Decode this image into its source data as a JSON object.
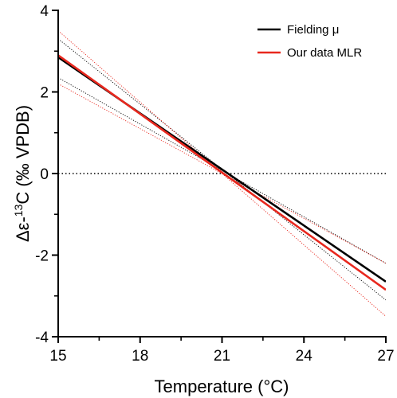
{
  "chart_data": {
    "type": "line",
    "title": "",
    "xlabel": "Temperature (°C)",
    "ylabel_parts": {
      "pre": "Δε-",
      "sup": "13",
      "post": "C (‰ VPDB)"
    },
    "xlim": [
      15,
      27
    ],
    "ylim": [
      -4,
      4
    ],
    "xticks": [
      15,
      18,
      21,
      24,
      27
    ],
    "yticks": [
      -4,
      -2,
      0,
      2,
      4
    ],
    "ytick_labels": [
      "-4",
      "-2",
      "0",
      "2",
      "4"
    ],
    "grid": false,
    "legend_position": "top-right",
    "reference_line": {
      "y": 0,
      "style": "dotted",
      "color": "#000000"
    },
    "series": [
      {
        "name": "Fielding μ",
        "color": "#000000",
        "x": [
          15,
          27
        ],
        "y": [
          2.85,
          -2.65
        ],
        "ci_lower": {
          "x": [
            15,
            27
          ],
          "y": [
            2.35,
            -2.2
          ]
        },
        "ci_upper": {
          "x": [
            15,
            27
          ],
          "y": [
            3.3,
            -3.1
          ]
        }
      },
      {
        "name": "Our data MLR",
        "color": "#e8281e",
        "x": [
          15,
          27
        ],
        "y": [
          2.9,
          -2.85
        ],
        "ci_lower": {
          "x": [
            15,
            27
          ],
          "y": [
            2.2,
            -2.2
          ]
        },
        "ci_upper": {
          "x": [
            15,
            27
          ],
          "y": [
            3.5,
            -3.5
          ]
        }
      }
    ]
  }
}
